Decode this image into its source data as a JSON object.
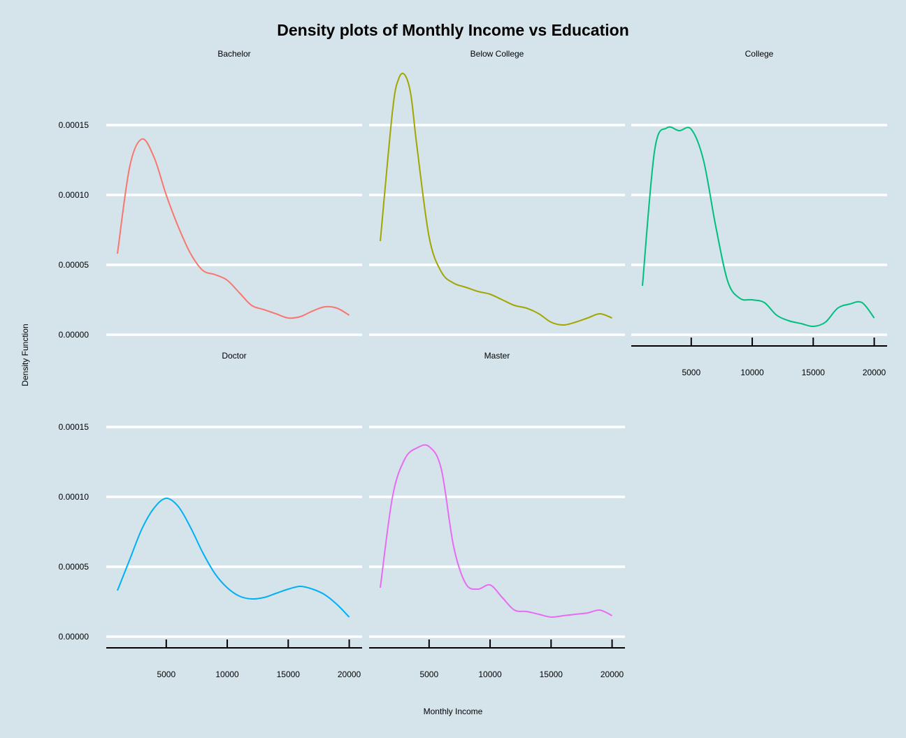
{
  "chart_data": {
    "type": "line",
    "title": "Density plots of Monthly Income vs Education",
    "xlabel": "Monthly Income",
    "ylabel": "Density Function",
    "xlim": [
      0,
      21000
    ],
    "ylim": [
      0,
      0.00019
    ],
    "x_ticks": [
      5000,
      10000,
      15000,
      20000
    ],
    "x_tick_labels": [
      "5000",
      "10000",
      "15000",
      "20000"
    ],
    "y_ticks": [
      0,
      5e-05,
      0.0001,
      0.00015
    ],
    "y_tick_labels": [
      "0.00000",
      "0.00005",
      "0.00010",
      "0.00015"
    ],
    "grid": "horizontal major lines only",
    "legend": "none",
    "panels": [
      {
        "name": "Bachelor",
        "color": "#F8766D",
        "x": [
          1000,
          2000,
          3000,
          4000,
          5000,
          6000,
          7000,
          8000,
          9000,
          10000,
          11000,
          12000,
          13000,
          14000,
          15000,
          16000,
          17000,
          18000,
          19000,
          20000
        ],
        "y": [
          5.8e-05,
          0.00012,
          0.00014,
          0.000127,
          0.0001,
          7.7e-05,
          5.8e-05,
          4.6e-05,
          4.3e-05,
          3.9e-05,
          3e-05,
          2.1e-05,
          1.8e-05,
          1.5e-05,
          1.2e-05,
          1.3e-05,
          1.7e-05,
          2e-05,
          1.9e-05,
          1.4e-05
        ]
      },
      {
        "name": "Below College",
        "color": "#A3A500",
        "x": [
          1000,
          2000,
          2500,
          3000,
          3500,
          4000,
          5000,
          6000,
          7000,
          8000,
          9000,
          10000,
          11000,
          12000,
          13000,
          14000,
          15000,
          16000,
          17000,
          18000,
          19000,
          20000
        ],
        "y": [
          6.7e-05,
          0.00016,
          0.000183,
          0.000186,
          0.000172,
          0.000135,
          7e-05,
          4.5e-05,
          3.7e-05,
          3.4e-05,
          3.1e-05,
          2.9e-05,
          2.5e-05,
          2.1e-05,
          1.9e-05,
          1.5e-05,
          9e-06,
          7e-06,
          9e-06,
          1.2e-05,
          1.5e-05,
          1.2e-05
        ]
      },
      {
        "name": "College",
        "color": "#00BF7D",
        "x": [
          1000,
          2000,
          3000,
          4000,
          5000,
          6000,
          7000,
          8000,
          9000,
          10000,
          11000,
          12000,
          13000,
          14000,
          15000,
          16000,
          17000,
          18000,
          19000,
          20000
        ],
        "y": [
          3.5e-05,
          0.000132,
          0.000148,
          0.000146,
          0.000147,
          0.000125,
          7.8e-05,
          3.8e-05,
          2.6e-05,
          2.5e-05,
          2.3e-05,
          1.4e-05,
          1e-05,
          8e-06,
          6e-06,
          9e-06,
          1.9e-05,
          2.2e-05,
          2.3e-05,
          1.2e-05
        ]
      },
      {
        "name": "Doctor",
        "color": "#00B0F6",
        "x": [
          1000,
          2000,
          3000,
          4000,
          5000,
          6000,
          7000,
          8000,
          9000,
          10000,
          11000,
          12000,
          13000,
          14000,
          15000,
          16000,
          17000,
          18000,
          19000,
          20000
        ],
        "y": [
          3.3e-05,
          5.5e-05,
          7.7e-05,
          9.2e-05,
          9.9e-05,
          9.3e-05,
          7.8e-05,
          6e-05,
          4.5e-05,
          3.5e-05,
          2.9e-05,
          2.7e-05,
          2.8e-05,
          3.1e-05,
          3.4e-05,
          3.6e-05,
          3.4e-05,
          3e-05,
          2.3e-05,
          1.4e-05
        ]
      },
      {
        "name": "Master",
        "color": "#E76BF3",
        "x": [
          1000,
          2000,
          3000,
          4000,
          5000,
          6000,
          7000,
          8000,
          9000,
          10000,
          11000,
          12000,
          13000,
          14000,
          15000,
          16000,
          17000,
          18000,
          19000,
          20000
        ],
        "y": [
          3.5e-05,
          0.0001,
          0.000127,
          0.000135,
          0.000136,
          0.00012,
          6.5e-05,
          3.8e-05,
          3.4e-05,
          3.7e-05,
          2.8e-05,
          1.9e-05,
          1.8e-05,
          1.6e-05,
          1.4e-05,
          1.5e-05,
          1.6e-05,
          1.7e-05,
          1.9e-05,
          1.5e-05
        ]
      }
    ]
  }
}
